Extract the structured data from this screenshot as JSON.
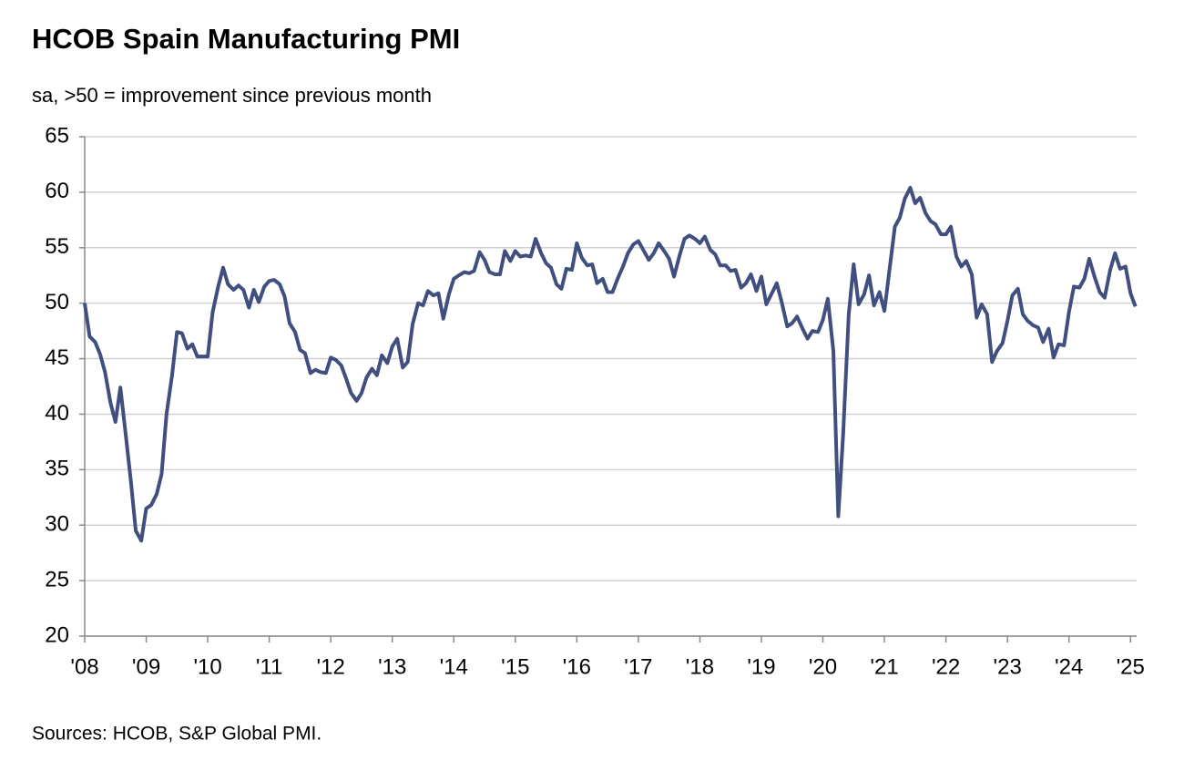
{
  "chart_data": {
    "type": "line",
    "title": "HCOB Spain Manufacturing PMI",
    "subtitle": "sa, >50 = improvement since previous month",
    "source": "Sources: HCOB, S&P Global PMI.",
    "color": "#414f80",
    "grid": true,
    "xlim": [
      2008,
      2025.1
    ],
    "ylim": [
      20,
      65
    ],
    "yticks": [
      20,
      25,
      30,
      35,
      40,
      45,
      50,
      55,
      60,
      65
    ],
    "xticks": [
      {
        "value": 2008,
        "label": "'08"
      },
      {
        "value": 2009,
        "label": "'09"
      },
      {
        "value": 2010,
        "label": "'10"
      },
      {
        "value": 2011,
        "label": "'11"
      },
      {
        "value": 2012,
        "label": "'12"
      },
      {
        "value": 2013,
        "label": "'13"
      },
      {
        "value": 2014,
        "label": "'14"
      },
      {
        "value": 2015,
        "label": "'15"
      },
      {
        "value": 2016,
        "label": "'16"
      },
      {
        "value": 2017,
        "label": "'17"
      },
      {
        "value": 2018,
        "label": "'18"
      },
      {
        "value": 2019,
        "label": "'19"
      },
      {
        "value": 2020,
        "label": "'20"
      },
      {
        "value": 2021,
        "label": "'21"
      },
      {
        "value": 2022,
        "label": "'22"
      },
      {
        "value": 2023,
        "label": "'23"
      },
      {
        "value": 2024,
        "label": "'24"
      },
      {
        "value": 2025,
        "label": "'25"
      }
    ],
    "x": [
      2008,
      2008.08,
      2008.17,
      2008.25,
      2008.33,
      2008.42,
      2008.5,
      2008.58,
      2008.67,
      2008.75,
      2008.83,
      2008.92,
      2009,
      2009.08,
      2009.17,
      2009.25,
      2009.33,
      2009.42,
      2009.5,
      2009.58,
      2009.67,
      2009.75,
      2009.83,
      2009.92,
      2010,
      2010.08,
      2010.17,
      2010.25,
      2010.33,
      2010.42,
      2010.5,
      2010.58,
      2010.67,
      2010.75,
      2010.83,
      2010.92,
      2011,
      2011.08,
      2011.17,
      2011.25,
      2011.33,
      2011.42,
      2011.5,
      2011.58,
      2011.67,
      2011.75,
      2011.83,
      2011.92,
      2012,
      2012.08,
      2012.17,
      2012.25,
      2012.33,
      2012.42,
      2012.5,
      2012.58,
      2012.67,
      2012.75,
      2012.83,
      2012.92,
      2013,
      2013.08,
      2013.17,
      2013.25,
      2013.33,
      2013.42,
      2013.5,
      2013.58,
      2013.67,
      2013.75,
      2013.83,
      2013.92,
      2014,
      2014.08,
      2014.17,
      2014.25,
      2014.33,
      2014.42,
      2014.5,
      2014.58,
      2014.67,
      2014.75,
      2014.83,
      2014.92,
      2015,
      2015.08,
      2015.17,
      2015.25,
      2015.33,
      2015.42,
      2015.5,
      2015.58,
      2015.67,
      2015.75,
      2015.83,
      2015.92,
      2016,
      2016.08,
      2016.17,
      2016.25,
      2016.33,
      2016.42,
      2016.5,
      2016.58,
      2016.67,
      2016.75,
      2016.83,
      2016.92,
      2017,
      2017.08,
      2017.17,
      2017.25,
      2017.33,
      2017.42,
      2017.5,
      2017.58,
      2017.67,
      2017.75,
      2017.83,
      2017.92,
      2018,
      2018.08,
      2018.17,
      2018.25,
      2018.33,
      2018.42,
      2018.5,
      2018.58,
      2018.67,
      2018.75,
      2018.83,
      2018.92,
      2019,
      2019.08,
      2019.17,
      2019.25,
      2019.33,
      2019.42,
      2019.5,
      2019.58,
      2019.67,
      2019.75,
      2019.83,
      2019.92,
      2020,
      2020.08,
      2020.17,
      2020.25,
      2020.33,
      2020.42,
      2020.5,
      2020.58,
      2020.67,
      2020.75,
      2020.83,
      2020.92,
      2021,
      2021.08,
      2021.17,
      2021.25,
      2021.33,
      2021.42,
      2021.5,
      2021.58,
      2021.67,
      2021.75,
      2021.83,
      2021.92,
      2022,
      2022.08,
      2022.17,
      2022.25,
      2022.33,
      2022.42,
      2022.5,
      2022.58,
      2022.67,
      2022.75,
      2022.83,
      2022.92,
      2023,
      2023.08,
      2023.17,
      2023.25,
      2023.33,
      2023.42,
      2023.5,
      2023.58,
      2023.67,
      2023.75,
      2023.83,
      2023.92,
      2024,
      2024.08,
      2024.17,
      2024.25,
      2024.33,
      2024.42,
      2024.5,
      2024.58,
      2024.67,
      2024.75,
      2024.83,
      2024.92,
      2025,
      2025.08
    ],
    "values": [
      50.0,
      47.0,
      46.5,
      45.4,
      43.8,
      41.0,
      39.3,
      42.4,
      38.0,
      34.0,
      29.5,
      28.6,
      31.5,
      31.8,
      32.8,
      34.6,
      40.0,
      43.5,
      47.4,
      47.3,
      45.9,
      46.3,
      45.2,
      45.2,
      45.2,
      49.2,
      51.5,
      53.2,
      51.7,
      51.2,
      51.6,
      51.2,
      49.6,
      51.2,
      50.1,
      51.5,
      52.0,
      52.1,
      51.7,
      50.6,
      48.2,
      47.4,
      45.8,
      45.5,
      43.7,
      44.0,
      43.8,
      43.7,
      45.1,
      44.9,
      44.4,
      43.2,
      41.9,
      41.2,
      41.9,
      43.3,
      44.1,
      43.5,
      45.3,
      44.6,
      46.1,
      46.8,
      44.2,
      44.7,
      48.1,
      50.0,
      49.8,
      51.1,
      50.7,
      50.9,
      48.6,
      50.8,
      52.2,
      52.5,
      52.8,
      52.7,
      52.9,
      54.6,
      53.9,
      52.8,
      52.6,
      52.6,
      54.7,
      53.8,
      54.7,
      54.2,
      54.3,
      54.2,
      55.8,
      54.5,
      53.6,
      53.2,
      51.7,
      51.3,
      53.1,
      53.0,
      55.4,
      54.1,
      53.4,
      53.5,
      51.8,
      52.2,
      51.0,
      51.0,
      52.3,
      53.3,
      54.5,
      55.3,
      55.6,
      54.8,
      53.9,
      54.5,
      55.4,
      54.7,
      54.0,
      52.4,
      54.3,
      55.8,
      56.1,
      55.8,
      55.4,
      56.0,
      54.8,
      54.4,
      53.4,
      53.4,
      52.9,
      53.0,
      51.4,
      51.8,
      52.6,
      51.1,
      52.4,
      49.9,
      50.9,
      51.8,
      50.1,
      47.9,
      48.2,
      48.8,
      47.7,
      46.8,
      47.5,
      47.4,
      48.5,
      50.4,
      45.7,
      30.8,
      38.3,
      49.0,
      53.5,
      49.9,
      50.8,
      52.5,
      49.8,
      51.0,
      49.3,
      52.9,
      56.9,
      57.7,
      59.4,
      60.4,
      59.0,
      59.5,
      58.1,
      57.4,
      57.1,
      56.2,
      56.2,
      56.9,
      54.2,
      53.3,
      53.8,
      52.6,
      48.7,
      49.9,
      49.0,
      44.7,
      45.7,
      46.4,
      48.4,
      50.7,
      51.3,
      49.0,
      48.4,
      48.0,
      47.8,
      46.5,
      47.7,
      45.1,
      46.3,
      46.2,
      49.2,
      51.5,
      51.4,
      52.2,
      54.0,
      52.3,
      51.0,
      50.5,
      53.0,
      54.5,
      53.1,
      53.3,
      50.9,
      49.7
    ]
  }
}
